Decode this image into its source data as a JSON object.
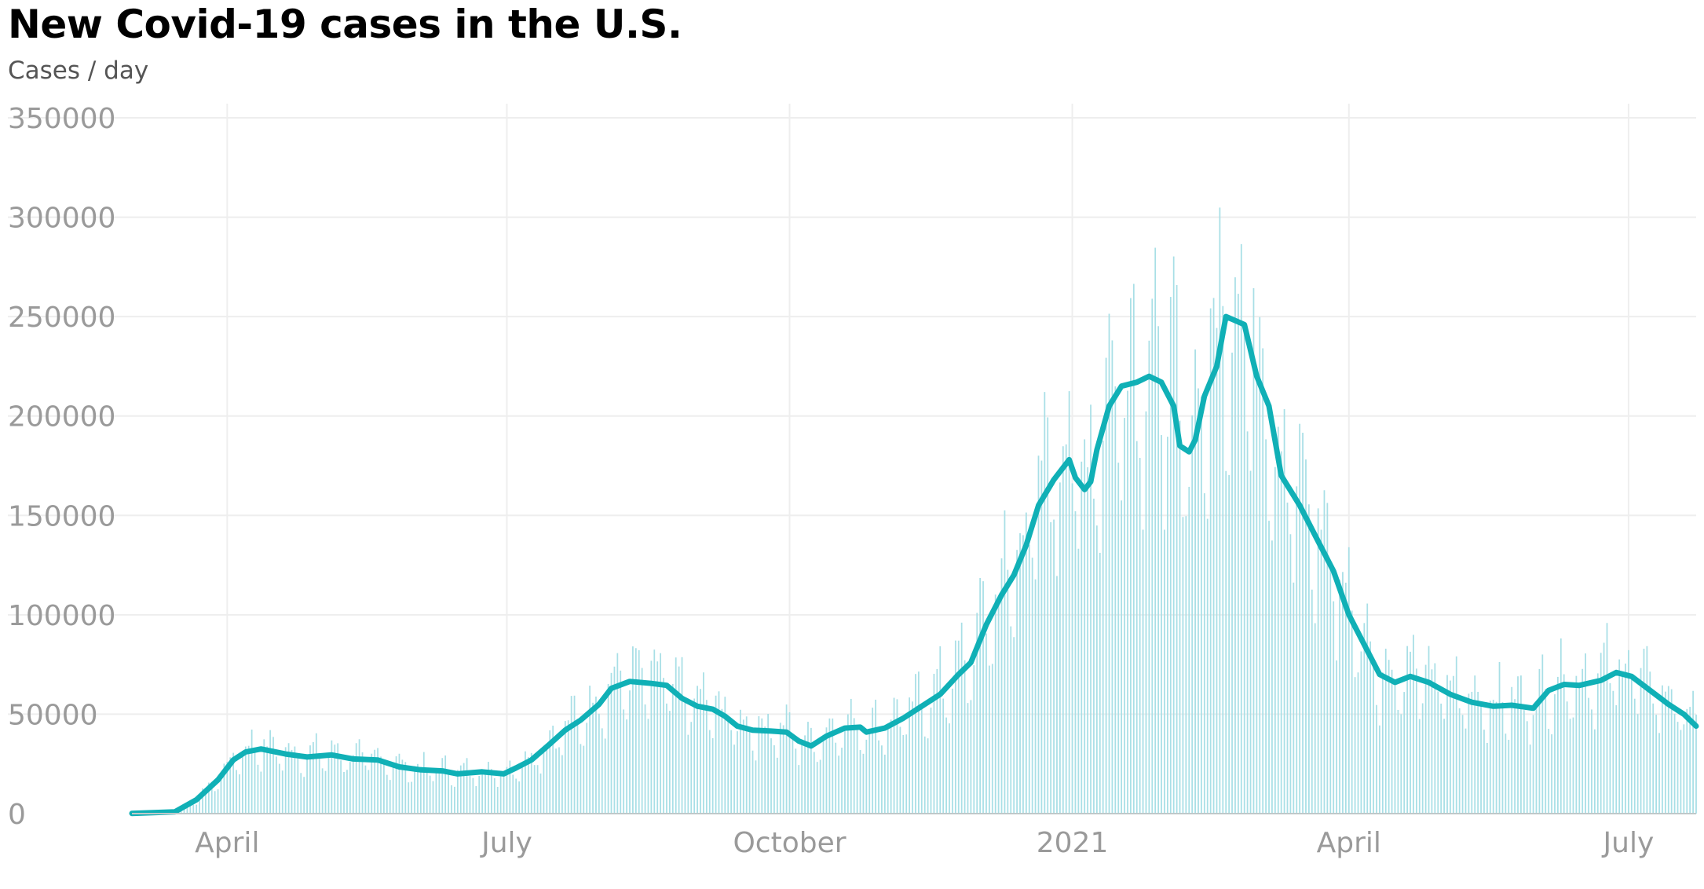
{
  "chart_data": {
    "type": "bar",
    "title": "New Covid-19 cases in the U.S.",
    "subtitle": "",
    "ylabel": "Cases / day",
    "xlabel": "",
    "ylim": [
      0,
      350000
    ],
    "xlim": [
      "2020-03-01",
      "2021-07-23"
    ],
    "grid": true,
    "y_ticks": [
      {
        "value": 0,
        "label": "0"
      },
      {
        "value": 50000,
        "label": "50000"
      },
      {
        "value": 100000,
        "label": "100000"
      },
      {
        "value": 150000,
        "label": "150000"
      },
      {
        "value": 200000,
        "label": "200000"
      },
      {
        "value": 250000,
        "label": "250000"
      },
      {
        "value": 300000,
        "label": "300000"
      },
      {
        "value": 350000,
        "label": "350000"
      }
    ],
    "x_ticks": [
      {
        "date": "2020-04-01",
        "label": "April"
      },
      {
        "date": "2020-07-01",
        "label": "July"
      },
      {
        "date": "2020-10-01",
        "label": "October"
      },
      {
        "date": "2021-01-01",
        "label": "2021"
      },
      {
        "date": "2021-04-01",
        "label": "April"
      },
      {
        "date": "2021-07-01",
        "label": "July"
      }
    ],
    "series": [
      {
        "kind": "bar",
        "color": "#a8dfe6",
        "note_values": "daily new cases"
      },
      {
        "kind": "line",
        "color": "#10b0b6",
        "note_values": "7-day average"
      }
    ],
    "daily_avg_keypoints": [
      [
        "2020-03-01",
        100
      ],
      [
        "2020-03-15",
        900
      ],
      [
        "2020-03-22",
        7000
      ],
      [
        "2020-03-29",
        17000
      ],
      [
        "2020-04-03",
        27000
      ],
      [
        "2020-04-07",
        31000
      ],
      [
        "2020-04-12",
        32500
      ],
      [
        "2020-04-20",
        30000
      ],
      [
        "2020-04-27",
        28500
      ],
      [
        "2020-05-05",
        29500
      ],
      [
        "2020-05-12",
        27500
      ],
      [
        "2020-05-20",
        27000
      ],
      [
        "2020-05-27",
        23500
      ],
      [
        "2020-06-03",
        22000
      ],
      [
        "2020-06-10",
        21500
      ],
      [
        "2020-06-15",
        20000
      ],
      [
        "2020-06-23",
        21000
      ],
      [
        "2020-06-30",
        20000
      ],
      [
        "2020-07-04",
        23000
      ],
      [
        "2020-07-09",
        27000
      ],
      [
        "2020-07-15",
        35000
      ],
      [
        "2020-07-20",
        42000
      ],
      [
        "2020-07-25",
        47000
      ],
      [
        "2020-07-31",
        55000
      ],
      [
        "2020-08-04",
        63000
      ],
      [
        "2020-08-10",
        66500
      ],
      [
        "2020-08-17",
        65500
      ],
      [
        "2020-08-22",
        64500
      ],
      [
        "2020-08-27",
        58000
      ],
      [
        "2020-09-01",
        54000
      ],
      [
        "2020-09-06",
        52500
      ],
      [
        "2020-09-10",
        49000
      ],
      [
        "2020-09-14",
        44000
      ],
      [
        "2020-09-19",
        42000
      ],
      [
        "2020-09-25",
        41500
      ],
      [
        "2020-09-30",
        41000
      ],
      [
        "2020-10-04",
        36500
      ],
      [
        "2020-10-08",
        34000
      ],
      [
        "2020-10-13",
        39000
      ],
      [
        "2020-10-19",
        43000
      ],
      [
        "2020-10-24",
        43500
      ],
      [
        "2020-10-26",
        41000
      ],
      [
        "2020-11-01",
        43000
      ],
      [
        "2020-11-07",
        48000
      ],
      [
        "2020-11-12",
        53000
      ],
      [
        "2020-11-19",
        60000
      ],
      [
        "2020-11-25",
        70000
      ],
      [
        "2020-11-29",
        76000
      ],
      [
        "2020-12-04",
        95000
      ],
      [
        "2020-12-09",
        110000
      ],
      [
        "2020-12-13",
        120000
      ],
      [
        "2020-12-17",
        135000
      ],
      [
        "2020-12-21",
        155000
      ],
      [
        "2020-12-26",
        168000
      ],
      [
        "2020-12-31",
        178000
      ],
      [
        "2021-01-02",
        169000
      ],
      [
        "2021-01-05",
        163000
      ],
      [
        "2021-01-07",
        167000
      ],
      [
        "2021-01-09",
        183000
      ],
      [
        "2021-01-13",
        205000
      ],
      [
        "2021-01-17",
        215000
      ],
      [
        "2021-01-22",
        217000
      ],
      [
        "2021-01-26",
        220000
      ],
      [
        "2021-01-30",
        217000
      ],
      [
        "2021-02-03",
        205000
      ],
      [
        "2021-02-05",
        185000
      ],
      [
        "2021-02-08",
        182000
      ],
      [
        "2021-02-10",
        188000
      ],
      [
        "2021-02-13",
        210000
      ],
      [
        "2021-02-17",
        225000
      ],
      [
        "2021-02-20",
        250000
      ],
      [
        "2021-02-23",
        248000
      ],
      [
        "2021-02-26",
        246000
      ],
      [
        "2021-03-02",
        220000
      ],
      [
        "2021-03-06",
        205000
      ],
      [
        "2021-03-10",
        170000
      ],
      [
        "2021-03-16",
        155000
      ],
      [
        "2021-03-21",
        140000
      ],
      [
        "2021-03-27",
        122000
      ],
      [
        "2021-04-01",
        100000
      ],
      [
        "2021-04-06",
        85000
      ],
      [
        "2021-04-11",
        70000
      ],
      [
        "2021-04-16",
        66000
      ],
      [
        "2021-04-21",
        69000
      ],
      [
        "2021-04-27",
        66000
      ],
      [
        "2021-05-04",
        60000
      ],
      [
        "2021-05-11",
        56000
      ],
      [
        "2021-05-18",
        54000
      ],
      [
        "2021-05-24",
        54500
      ],
      [
        "2021-05-31",
        53000
      ],
      [
        "2021-06-05",
        62000
      ],
      [
        "2021-06-10",
        65000
      ],
      [
        "2021-06-15",
        64500
      ],
      [
        "2021-06-22",
        67000
      ],
      [
        "2021-06-27",
        71000
      ],
      [
        "2021-07-02",
        69000
      ],
      [
        "2021-07-08",
        62000
      ],
      [
        "2021-07-14",
        55000
      ],
      [
        "2021-07-19",
        50000
      ],
      [
        "2021-07-23",
        44000
      ]
    ]
  }
}
